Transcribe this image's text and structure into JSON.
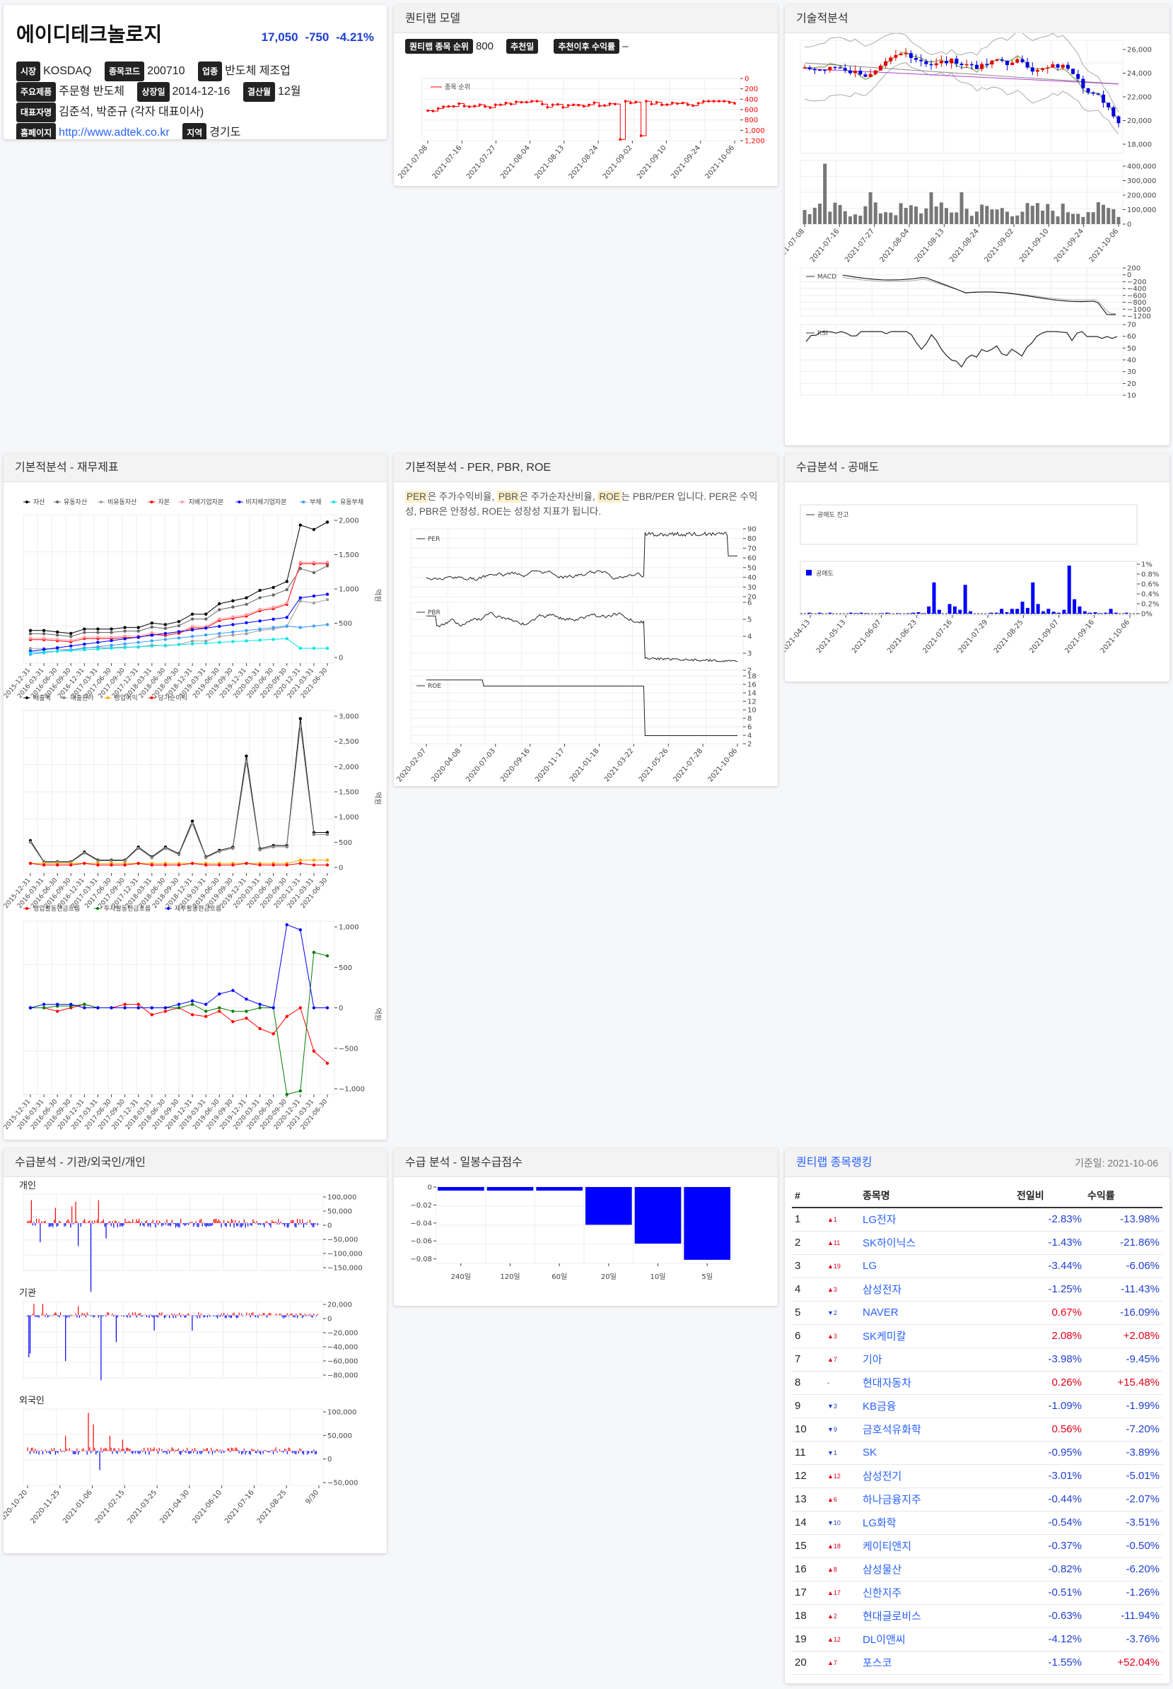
{
  "company": {
    "name": "에이디테크놀로지",
    "price": "17,050",
    "change": "-750",
    "change_pct": "-4.21%",
    "market_label": "시장",
    "market": "KOSDAQ",
    "code_label": "종목코드",
    "code": "200710",
    "industry_label": "업종",
    "industry": "반도체 제조업",
    "product_label": "주요제품",
    "product": "주문형 반도체",
    "listed_label": "상장일",
    "listed": "2014-12-16",
    "settle_label": "결산월",
    "settle": "12월",
    "ceo_label": "대표자명",
    "ceo": "김준석, 박준규 (각자 대표이사)",
    "home_label": "홈페이지",
    "home": "http://www.adtek.co.kr",
    "region_label": "지역",
    "region": "경기도"
  },
  "quant": {
    "title": "퀀티랩 모델",
    "rank_label": "퀀티랩 종목 순위",
    "rank_value": "800",
    "rec_label": "추천일",
    "rec_value": "",
    "ret_label": "추천이후 수익률",
    "ret_value": "–",
    "legend": "종목 순위",
    "y_ticks": [
      "0",
      "200",
      "400",
      "600",
      "800",
      "1,000",
      "1,200"
    ],
    "x_ticks": [
      "2021-07-08",
      "2021-07-16",
      "2021-07-27",
      "2021-08-04",
      "2021-08-13",
      "2021-08-24",
      "2021-09-02",
      "2021-09-10",
      "2021-09-24",
      "2021-10-06"
    ]
  },
  "tech": {
    "title": "기술적분석",
    "price_ticks": [
      "26,000",
      "24,000",
      "22,000",
      "20,000",
      "18,000"
    ],
    "vol_ticks": [
      "400,000",
      "300,000",
      "200,000",
      "100,000",
      "0"
    ],
    "x_ticks": [
      "2021-07-08",
      "2021-07-16",
      "2021-07-27",
      "2021-08-04",
      "2021-08-13",
      "2021-08-24",
      "2021-09-02",
      "2021-09-10",
      "2021-09-24",
      "2021-10-06"
    ],
    "macd_label": "MACD",
    "macd_ticks": [
      "200",
      "0",
      "−200",
      "−400",
      "−600",
      "−800",
      "−1000",
      "−1200"
    ],
    "rsi_label": "RSI",
    "rsi_ticks": [
      "70",
      "60",
      "50",
      "40",
      "30",
      "20",
      "10"
    ]
  },
  "fin": {
    "title": "기본적분석 - 재무제표",
    "legend1": [
      "자산",
      "유동자산",
      "비유동자산",
      "자본",
      "지배기업자본",
      "비지배기업자본",
      "부채",
      "유동부채"
    ],
    "legend1_colors": [
      "#000000",
      "#666666",
      "#9e9e9e",
      "#ff0000",
      "#ff9ea6",
      "#0000ff",
      "#3aa0ff",
      "#00e5e5"
    ],
    "legend2": [
      "매출액",
      "매출원가",
      "영업이익",
      "당기순이익"
    ],
    "legend2_colors": [
      "#000000",
      "#888888",
      "#ffa500",
      "#ff0000"
    ],
    "legend3": [
      "영업활동현금흐름",
      "투자활동현금흐름",
      "재무활동현금흐름"
    ],
    "legend3_colors": [
      "#ff0000",
      "#008000",
      "#0000ff"
    ],
    "unit": "억원",
    "ticks1": [
      "2,000",
      "1,500",
      "1,000",
      "500",
      "0"
    ],
    "ticks2": [
      "3,000",
      "2,500",
      "2,000",
      "1,500",
      "1,000",
      "500",
      "0"
    ],
    "ticks3": [
      "1,000",
      "500",
      "0",
      "−500",
      "−1,000"
    ],
    "quarters": [
      "2015-12-31",
      "2016-03-31",
      "2016-06-30",
      "2016-09-30",
      "2016-12-31",
      "2017-03-31",
      "2017-06-30",
      "2017-09-30",
      "2017-12-31",
      "2018-03-31",
      "2018-06-30",
      "2018-09-30",
      "2018-12-31",
      "2019-03-31",
      "2019-06-30",
      "2019-09-30",
      "2019-12-31",
      "2020-03-31",
      "2020-06-30",
      "2020-09-30",
      "2020-12-31",
      "2021-03-31",
      "2021-06-30"
    ]
  },
  "per": {
    "title": "기본적분석 - PER, PBR, ROE",
    "desc_per": "PER",
    "desc_1": "은 주가수익비율,",
    "desc_pbr": "PBR",
    "desc_2": "은 주가순자산비율,",
    "desc_roe": "ROE",
    "desc_3": "는 PBR/PER 입니다. PER은 수익성, PBR은 안정성, ROE는 성장성 지표가 됩니다.",
    "per_label": "PER",
    "pbr_label": "PBR",
    "roe_label": "ROE",
    "per_ticks": [
      "90",
      "80",
      "70",
      "60",
      "50",
      "40",
      "30",
      "20"
    ],
    "pbr_ticks": [
      "6",
      "5",
      "4",
      "3",
      "2"
    ],
    "roe_ticks": [
      "18",
      "16",
      "14",
      "12",
      "10",
      "8",
      "6",
      "4",
      "2"
    ],
    "x_ticks": [
      "2020-02-07",
      "2020-04-08",
      "2020-07-03",
      "2020-09-16",
      "2020-11-17",
      "2021-01-18",
      "2021-03-22",
      "2021-05-26",
      "2021-07-28",
      "2021-10-06"
    ]
  },
  "short": {
    "title": "수급분석 - 공매도",
    "legend1": "공매도 잔고",
    "legend2": "공매도",
    "ticks": [
      "1%",
      "0.8%",
      "0.6%",
      "0.4%",
      "0.2%",
      "0%"
    ],
    "x_ticks": [
      "2021-04-13",
      "2021-05-13",
      "2021-06-07",
      "2021-06-23",
      "2021-07-16",
      "2021-07-29",
      "2021-08-25",
      "2021-09-07",
      "2021-09-16",
      "2021-10-06"
    ]
  },
  "flow": {
    "title": "수급분석 - 기관/외국인/개인",
    "individual": "개인",
    "institution": "기관",
    "foreign": "외국인",
    "ind_ticks": [
      "100,000",
      "50,000",
      "0",
      "−50,000",
      "−100,000",
      "−150,000"
    ],
    "inst_ticks": [
      "20,000",
      "0",
      "−20,000",
      "−40,000",
      "−60,000",
      "−80,000"
    ],
    "for_ticks": [
      "100,000",
      "50,000",
      "0",
      "−50,000"
    ],
    "x_ticks": [
      "2020-10-20",
      "2020-11-25",
      "2021-01-06",
      "2021-02-15",
      "2021-03-25",
      "2021-04-30",
      "2021-06-10",
      "2021-07-16",
      "2021-08-25",
      "9/30"
    ]
  },
  "score": {
    "title": "수급 분석 - 일봉수급점수",
    "ticks": [
      "0",
      "−0.02",
      "−0.04",
      "−0.06",
      "−0.08"
    ],
    "chart_data": {
      "type": "bar",
      "categories": [
        "240일",
        "120일",
        "60일",
        "20일",
        "10일",
        "5일"
      ],
      "values": [
        -0.004,
        -0.004,
        -0.004,
        -0.042,
        -0.063,
        -0.081
      ],
      "ylim": [
        -0.085,
        0
      ]
    }
  },
  "ranking": {
    "title": "퀀티랩 종목랭킹",
    "date": "기준일: 2021-10-06",
    "headers": [
      "#",
      "",
      "종목명",
      "전일비",
      "수익률"
    ],
    "rows": [
      {
        "n": "1",
        "mv": "▲1",
        "dir": "up",
        "name": "LG전자",
        "chg": "-2.83%",
        "ret": "-13.98%"
      },
      {
        "n": "2",
        "mv": "▲11",
        "dir": "up",
        "name": "SK하이닉스",
        "chg": "-1.43%",
        "ret": "-21.86%"
      },
      {
        "n": "3",
        "mv": "▲19",
        "dir": "up",
        "name": "LG",
        "chg": "-3.44%",
        "ret": "-6.06%"
      },
      {
        "n": "4",
        "mv": "▲3",
        "dir": "up",
        "name": "삼성전자",
        "chg": "-1.25%",
        "ret": "-11.43%"
      },
      {
        "n": "5",
        "mv": "▼2",
        "dir": "dn",
        "name": "NAVER",
        "chg": "0.67%",
        "ret": "-16.09%"
      },
      {
        "n": "6",
        "mv": "▲3",
        "dir": "up",
        "name": "SK케미칼",
        "chg": "2.08%",
        "ret": "+2.08%"
      },
      {
        "n": "7",
        "mv": "▲7",
        "dir": "up",
        "name": "기아",
        "chg": "-3.98%",
        "ret": "-9.45%"
      },
      {
        "n": "8",
        "mv": "-",
        "dir": "none",
        "name": "현대자동차",
        "chg": "0.26%",
        "ret": "+15.48%"
      },
      {
        "n": "9",
        "mv": "▼3",
        "dir": "dn",
        "name": "KB금융",
        "chg": "-1.09%",
        "ret": "-1.99%"
      },
      {
        "n": "10",
        "mv": "▼9",
        "dir": "dn",
        "name": "금호석유화학",
        "chg": "0.56%",
        "ret": "-7.20%"
      },
      {
        "n": "11",
        "mv": "▼1",
        "dir": "dn",
        "name": "SK",
        "chg": "-0.95%",
        "ret": "-3.89%"
      },
      {
        "n": "12",
        "mv": "▲12",
        "dir": "up",
        "name": "삼성전기",
        "chg": "-3.01%",
        "ret": "-5.01%"
      },
      {
        "n": "13",
        "mv": "▲6",
        "dir": "up",
        "name": "하나금융지주",
        "chg": "-0.44%",
        "ret": "-2.07%"
      },
      {
        "n": "14",
        "mv": "▼10",
        "dir": "dn",
        "name": "LG화학",
        "chg": "-0.54%",
        "ret": "-3.51%"
      },
      {
        "n": "15",
        "mv": "▲18",
        "dir": "up",
        "name": "케이티앤지",
        "chg": "-0.37%",
        "ret": "-0.50%"
      },
      {
        "n": "16",
        "mv": "▲8",
        "dir": "up",
        "name": "삼성물산",
        "chg": "-0.82%",
        "ret": "-6.20%"
      },
      {
        "n": "17",
        "mv": "▲17",
        "dir": "up",
        "name": "신한지주",
        "chg": "-0.51%",
        "ret": "-1.26%"
      },
      {
        "n": "18",
        "mv": "▲2",
        "dir": "up",
        "name": "현대글로비스",
        "chg": "-0.63%",
        "ret": "-11.94%"
      },
      {
        "n": "19",
        "mv": "▲12",
        "dir": "up",
        "name": "DL이앤씨",
        "chg": "-4.12%",
        "ret": "-3.76%"
      },
      {
        "n": "20",
        "mv": "▲7",
        "dir": "up",
        "name": "포스코",
        "chg": "-1.55%",
        "ret": "+52.04%"
      }
    ]
  },
  "colors": {
    "up": "#e0001c",
    "down": "#1f3fd0",
    "link": "#2962ff",
    "bar": "#0000ff"
  }
}
